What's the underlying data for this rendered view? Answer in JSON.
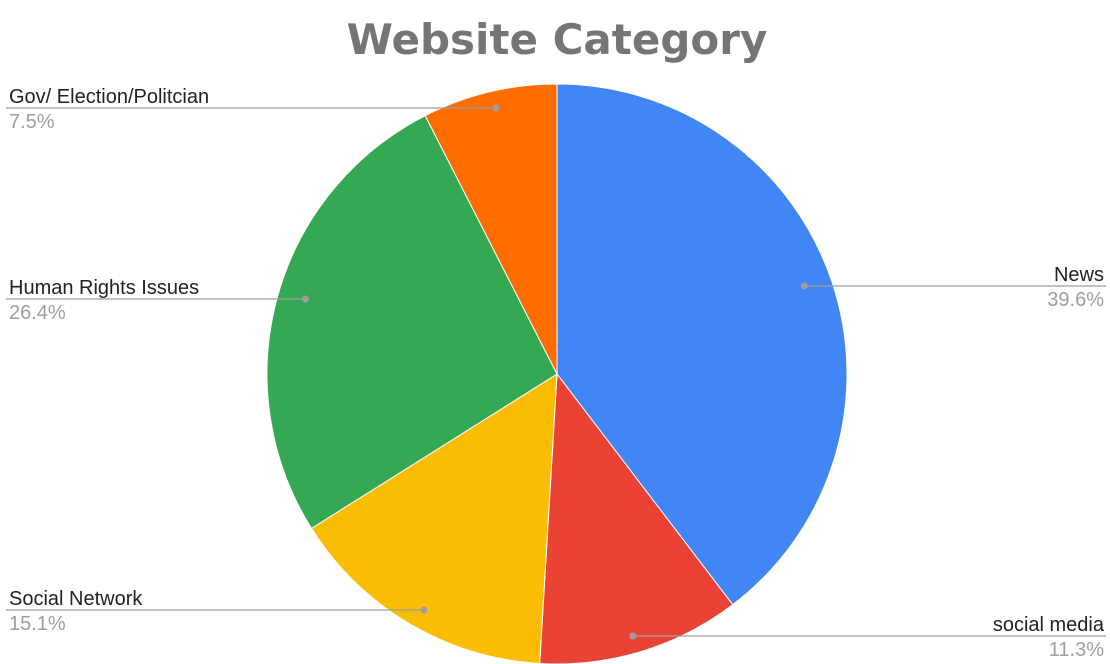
{
  "chart_data": {
    "type": "pie",
    "title": "Website Category",
    "slices": [
      {
        "label": "News",
        "value": 39.6,
        "display": "39.6%",
        "color": "#4285F4"
      },
      {
        "label": "social media",
        "value": 11.3,
        "display": "11.3%",
        "color": "#EA4335"
      },
      {
        "label": "Social Network",
        "value": 15.1,
        "display": "15.1%",
        "color": "#FBBC04"
      },
      {
        "label": "Human Rights Issues",
        "value": 26.4,
        "display": "26.4%",
        "color": "#34A853"
      },
      {
        "label": "Gov/ Election/Politcian",
        "value": 7.5,
        "display": "7.5%",
        "color": "#FF6D01"
      }
    ],
    "start_angle": "12 o'clock",
    "direction": "clockwise",
    "legend": "none",
    "labels": "outside with leader lines"
  }
}
